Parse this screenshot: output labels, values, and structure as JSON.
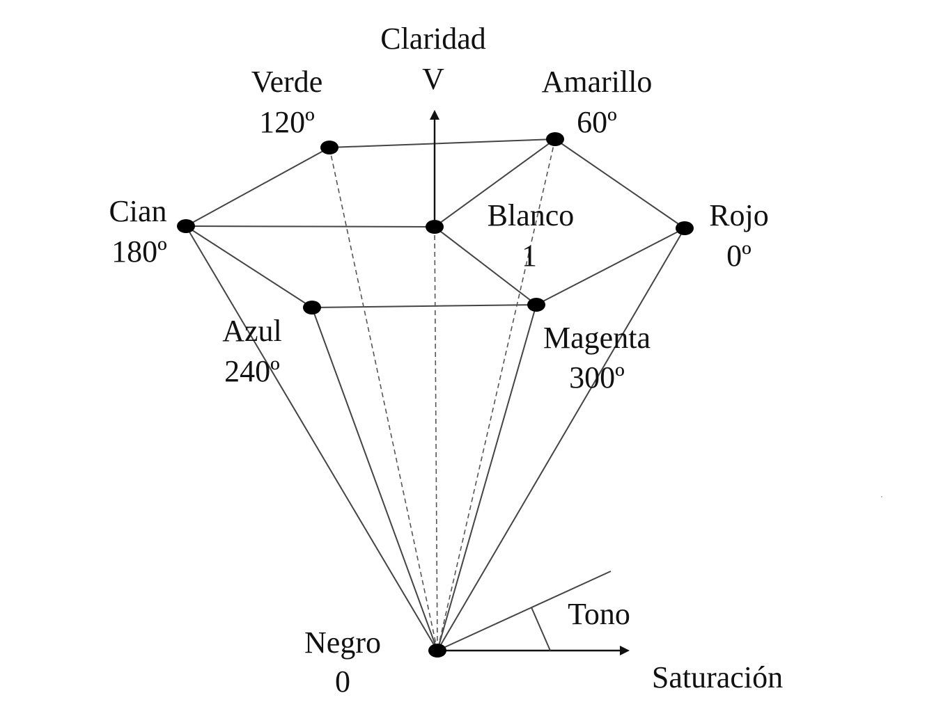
{
  "axes": {
    "vertical_name": "Claridad",
    "vertical_symbol": "V",
    "horizontal_name": "Saturación",
    "angle_name": "Tono"
  },
  "vertices": {
    "verde": {
      "name": "Verde",
      "value": "120º"
    },
    "amarillo": {
      "name": "Amarillo",
      "value": "60º"
    },
    "cian": {
      "name": "Cian",
      "value": "180º"
    },
    "blanco": {
      "name": "Blanco",
      "value": "1"
    },
    "rojo": {
      "name": "Rojo",
      "value": "0º"
    },
    "azul": {
      "name": "Azul",
      "value": "240º"
    },
    "magenta": {
      "name": "Magenta",
      "value": "300º"
    },
    "negro": {
      "name": "Negro",
      "value": "0"
    }
  }
}
